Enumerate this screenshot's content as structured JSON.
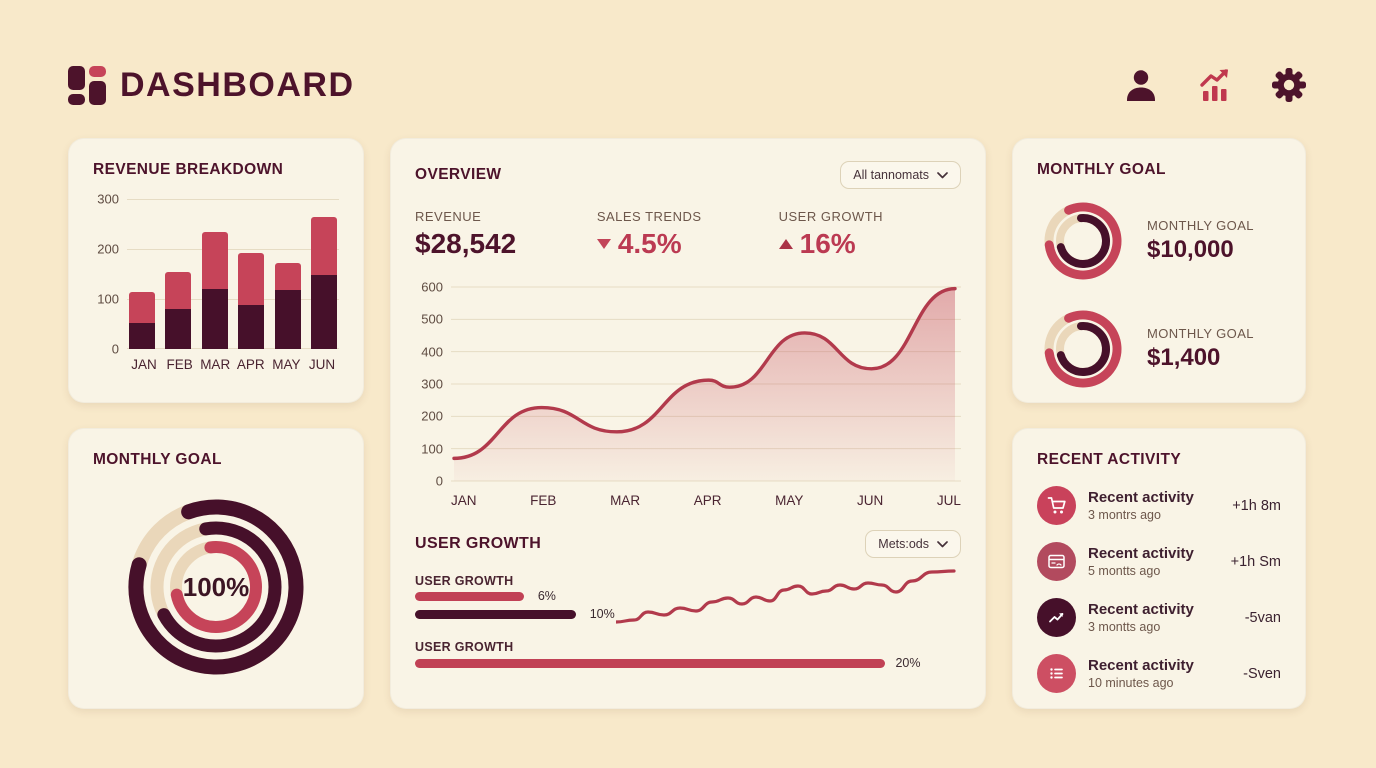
{
  "colors": {
    "background": "#f8e9ca",
    "card": "#f9f4e6",
    "dark_maroon": "#46102a",
    "crimson": "#c64459",
    "line_red": "#b23a4c",
    "track_beige": "#ead7ba",
    "grid": "#e6dcc4"
  },
  "header": {
    "title": "DASHBOARD",
    "icons": [
      "user-icon",
      "growth-chart-icon",
      "settings-gear-icon"
    ]
  },
  "revenue_breakdown": {
    "title": "REVENUE BREAKDOWN",
    "chart": {
      "type": "bar",
      "stacked": true,
      "categories": [
        "JAN",
        "FEB",
        "MAR",
        "APR",
        "MAY",
        "JUN"
      ],
      "series": [
        {
          "name": "dark-segment",
          "color": "#46102a",
          "values": [
            52,
            80,
            120,
            88,
            118,
            148
          ]
        },
        {
          "name": "red-segment",
          "color": "#c64459",
          "values": [
            63,
            75,
            115,
            104,
            54,
            117
          ]
        }
      ],
      "totals": [
        115,
        155,
        235,
        192,
        172,
        265
      ],
      "y_ticks": [
        300,
        200,
        100,
        0
      ],
      "ylim": [
        0,
        300
      ]
    }
  },
  "monthly_goal_left": {
    "title": "MONTHLY GOAL",
    "center_label": "100%",
    "rings": [
      {
        "r": 80,
        "w": 15,
        "color": "#46102a",
        "frac": 0.85,
        "rot": -110
      },
      {
        "r": 59,
        "w": 13,
        "color": "#46102a",
        "frac": 0.7,
        "rot": -100
      },
      {
        "r": 40,
        "w": 12,
        "color": "#c64459",
        "frac": 0.74,
        "rot": -98
      }
    ]
  },
  "overview": {
    "title": "OVERVIEW",
    "dropdown": "All tannomats",
    "stats": [
      {
        "label": "REVENUE",
        "value": "$28,542",
        "trend": "none"
      },
      {
        "label": "SALES TRENDS",
        "value": "4.5%",
        "trend": "down"
      },
      {
        "label": "USER GROWTH",
        "value": "16%",
        "trend": "up"
      }
    ],
    "area_chart": {
      "type": "area",
      "x_labels": [
        "JAN",
        "FEB",
        "MAR",
        "APR",
        "MAY",
        "JUN",
        "JUL"
      ],
      "y_ticks": [
        600,
        500,
        400,
        300,
        200,
        100,
        0
      ],
      "ylim": [
        0,
        600
      ],
      "points": [
        [
          0,
          70
        ],
        [
          1.05,
          227
        ],
        [
          1.95,
          152
        ],
        [
          3.05,
          312
        ],
        [
          3.3,
          290
        ],
        [
          4.2,
          458
        ],
        [
          5.0,
          347
        ],
        [
          6,
          595
        ]
      ]
    }
  },
  "user_growth": {
    "title": "USER GROWTH",
    "dropdown": "Mets:ods",
    "group1_label": "USER GROWTH",
    "group2_label": "USER GROWTH",
    "bars": [
      {
        "text": "6%",
        "color": "red",
        "width_pct": 20
      },
      {
        "text": "10%",
        "color": "dark",
        "width_pct": 29.5
      },
      {
        "text": "20%",
        "color": "red",
        "width_pct": 86
      }
    ],
    "sparkline": {
      "type": "line",
      "points": [
        [
          0,
          56
        ],
        [
          18,
          54
        ],
        [
          32,
          46
        ],
        [
          48,
          49
        ],
        [
          64,
          42
        ],
        [
          80,
          45
        ],
        [
          96,
          36
        ],
        [
          112,
          32
        ],
        [
          126,
          38
        ],
        [
          140,
          31
        ],
        [
          154,
          35
        ],
        [
          168,
          24
        ],
        [
          182,
          20
        ],
        [
          196,
          28
        ],
        [
          210,
          25
        ],
        [
          224,
          19
        ],
        [
          238,
          23
        ],
        [
          252,
          17
        ],
        [
          266,
          19
        ],
        [
          280,
          26
        ],
        [
          296,
          15
        ],
        [
          316,
          6
        ],
        [
          338,
          5
        ]
      ]
    }
  },
  "monthly_goal_right": {
    "title": "MONTHLY GOAL",
    "items": [
      {
        "label": "MONTHLY GOAL",
        "value": "$10,000",
        "rings": [
          {
            "r": 34,
            "w": 9,
            "color": "#c64459",
            "frac": 0.8,
            "rot": -115
          },
          {
            "r": 23,
            "w": 8,
            "color": "#46102a",
            "frac": 0.72,
            "rot": -95
          }
        ]
      },
      {
        "label": "MONTHLY GOAL",
        "value": "$1,400",
        "rings": [
          {
            "r": 34,
            "w": 9,
            "color": "#c64459",
            "frac": 0.8,
            "rot": -115
          },
          {
            "r": 23,
            "w": 8,
            "color": "#46102a",
            "frac": 0.72,
            "rot": -95
          }
        ]
      }
    ]
  },
  "recent_activity": {
    "title": "RECENT ACTIVITY",
    "items": [
      {
        "icon": "cart-icon",
        "icon_bg": "#c9425b",
        "title": "Recent activity",
        "time": "3 montrs ago",
        "value": "+1h 8m"
      },
      {
        "icon": "browser-icon",
        "icon_bg": "#b24a5e",
        "title": "Recent activity",
        "time": "5 montts ago",
        "value": "+1h Sm"
      },
      {
        "icon": "trend-icon",
        "icon_bg": "#46102a",
        "title": "Recent activity",
        "time": "3 montts ago",
        "value": "-5van"
      },
      {
        "icon": "list-icon",
        "icon_bg": "#cd4f63",
        "title": "Recent activity",
        "time": "10 minutes ago",
        "value": "-Sven"
      }
    ]
  }
}
